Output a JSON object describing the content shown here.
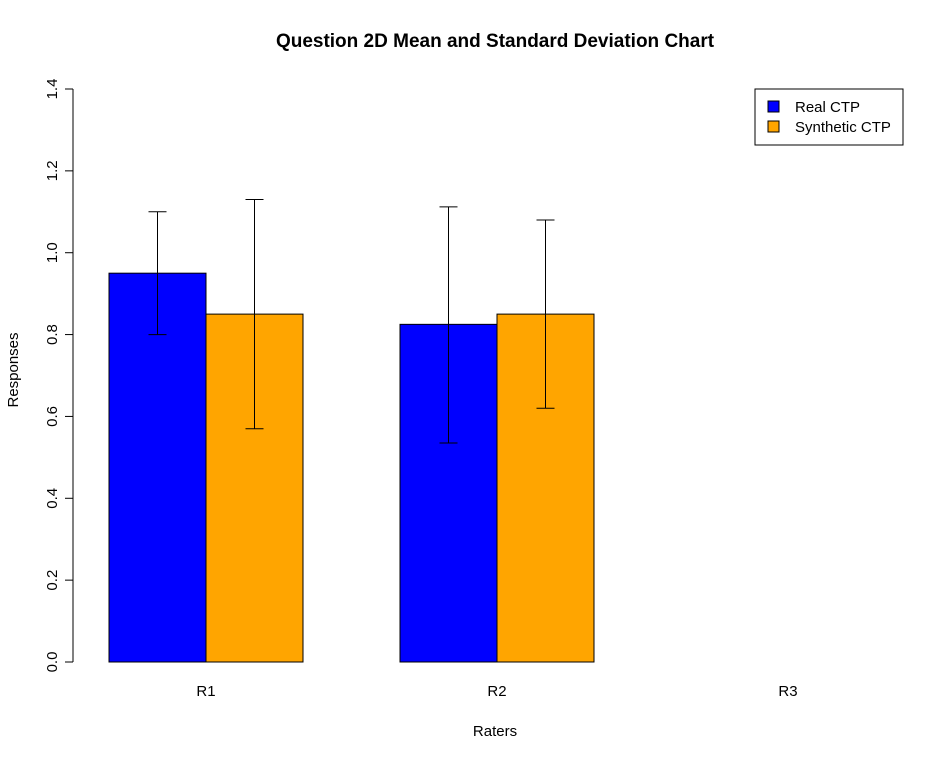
{
  "chart_data": {
    "type": "bar",
    "title": "Question 2D Mean and Standard Deviation Chart",
    "xlabel": "Raters",
    "ylabel": "Responses",
    "categories": [
      "R1",
      "R2",
      "R3"
    ],
    "ylim": [
      0,
      1.4
    ],
    "yticks": [
      "0.0",
      "0.2",
      "0.4",
      "0.6",
      "0.8",
      "1.0",
      "1.2",
      "1.4"
    ],
    "series": [
      {
        "name": "Real CTP",
        "color": "#0000ff",
        "values": [
          0.95,
          0.825,
          0
        ],
        "err_low": [
          0.8,
          0.535,
          null
        ],
        "err_high": [
          1.1,
          1.112,
          null
        ]
      },
      {
        "name": "Synthetic CTP",
        "color": "#ffa500",
        "values": [
          0.85,
          0.85,
          0
        ],
        "err_low": [
          0.57,
          0.62,
          null
        ],
        "err_high": [
          1.13,
          1.08,
          null
        ]
      }
    ],
    "legend_position": "top-right",
    "grid": false,
    "error_bars": true
  }
}
